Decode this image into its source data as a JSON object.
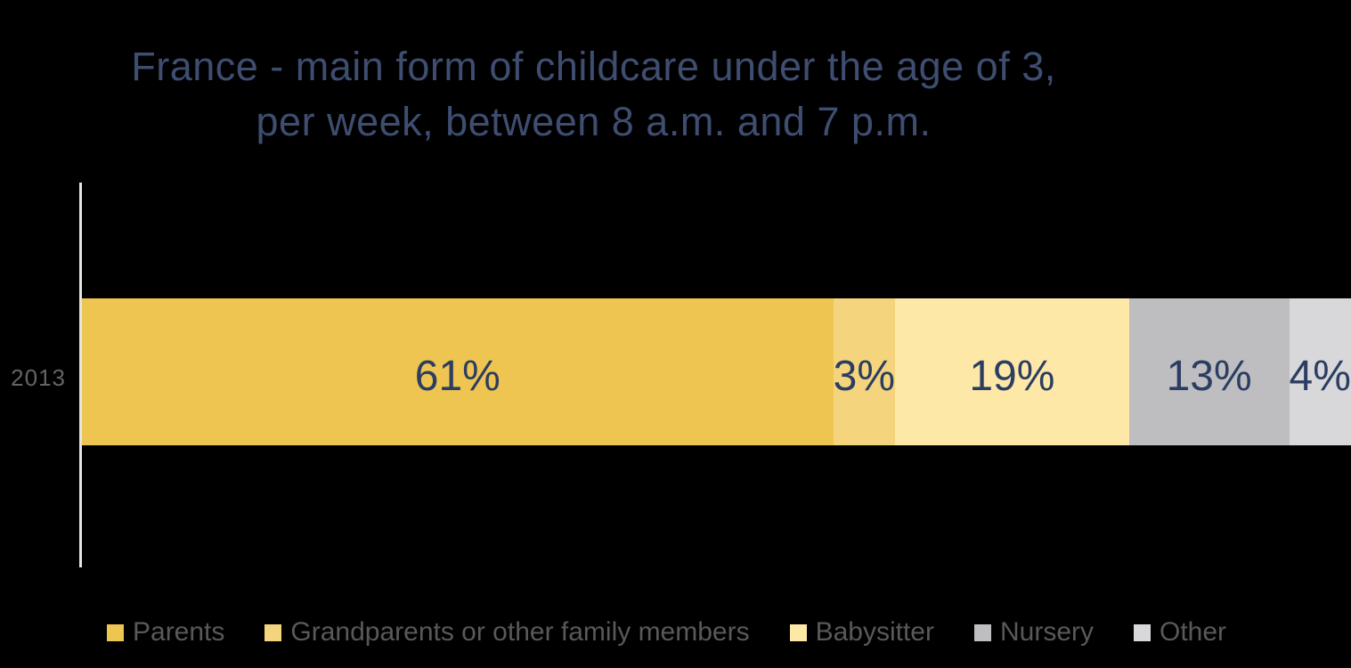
{
  "title": {
    "line1": "France - main form of childcare under the age of 3,",
    "line2": "per week, between 8 a.m. and 7 p.m."
  },
  "colors": {
    "background": "#000000",
    "title_text": "#3E4D70",
    "data_label_text": "#2C3D63",
    "axis_line": "#E5E5E5",
    "category_label_text": "#646464",
    "legend_text": "#595959"
  },
  "chart_data": {
    "type": "bar",
    "subtype": "horizontal-stacked",
    "title": "France - main form of childcare under the age of 3, per week, between 8 a.m. and 7 p.m.",
    "categories": [
      "2013"
    ],
    "series": [
      {
        "name": "Parents",
        "values": [
          61
        ],
        "label": "61%",
        "color": "#EEC550"
      },
      {
        "name": "Grandparents or other family members",
        "values": [
          3
        ],
        "label": "3%",
        "color": "#F4D57D"
      },
      {
        "name": "Babysitter",
        "values": [
          19
        ],
        "label": "19%",
        "color": "#FDE8A7"
      },
      {
        "name": "Nursery",
        "values": [
          13
        ],
        "label": "13%",
        "color": "#BEBEC1"
      },
      {
        "name": "Other",
        "values": [
          4
        ],
        "label": "4%",
        "color": "#D8D8DA"
      }
    ],
    "xlim": [
      0,
      100
    ],
    "unit": "%",
    "grid": false,
    "legend_position": "bottom"
  }
}
